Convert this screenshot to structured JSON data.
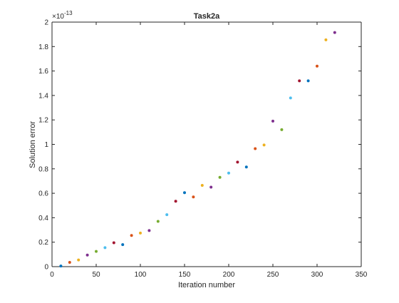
{
  "chart_data": {
    "type": "scatter",
    "title": "Task2a",
    "xlabel": "Iteration number",
    "ylabel": "Solution error",
    "y_exponent_label": "×10",
    "y_exponent": "-13",
    "xlim": [
      0,
      350
    ],
    "ylim": [
      0,
      2
    ],
    "xticks": [
      "0",
      "50",
      "100",
      "150",
      "200",
      "250",
      "300",
      "350"
    ],
    "yticks": [
      "0",
      "0.2",
      "0.4",
      "0.6",
      "0.8",
      "1",
      "1.2",
      "1.4",
      "1.6",
      "1.8",
      "2"
    ],
    "grid": false,
    "points": [
      {
        "x": 10,
        "y": 0.005,
        "color": "#0072BD"
      },
      {
        "x": 20,
        "y": 0.035,
        "color": "#D95319"
      },
      {
        "x": 30,
        "y": 0.055,
        "color": "#EDB120"
      },
      {
        "x": 40,
        "y": 0.095,
        "color": "#7E2F8E"
      },
      {
        "x": 50,
        "y": 0.125,
        "color": "#77AC30"
      },
      {
        "x": 60,
        "y": 0.155,
        "color": "#4DBEEE"
      },
      {
        "x": 70,
        "y": 0.195,
        "color": "#A2142F"
      },
      {
        "x": 80,
        "y": 0.18,
        "color": "#0072BD"
      },
      {
        "x": 90,
        "y": 0.255,
        "color": "#D95319"
      },
      {
        "x": 100,
        "y": 0.275,
        "color": "#EDB120"
      },
      {
        "x": 110,
        "y": 0.295,
        "color": "#7E2F8E"
      },
      {
        "x": 120,
        "y": 0.37,
        "color": "#77AC30"
      },
      {
        "x": 130,
        "y": 0.425,
        "color": "#4DBEEE"
      },
      {
        "x": 140,
        "y": 0.535,
        "color": "#A2142F"
      },
      {
        "x": 150,
        "y": 0.605,
        "color": "#0072BD"
      },
      {
        "x": 160,
        "y": 0.57,
        "color": "#D95319"
      },
      {
        "x": 170,
        "y": 0.665,
        "color": "#EDB120"
      },
      {
        "x": 180,
        "y": 0.65,
        "color": "#7E2F8E"
      },
      {
        "x": 190,
        "y": 0.73,
        "color": "#77AC30"
      },
      {
        "x": 200,
        "y": 0.765,
        "color": "#4DBEEE"
      },
      {
        "x": 210,
        "y": 0.855,
        "color": "#A2142F"
      },
      {
        "x": 220,
        "y": 0.815,
        "color": "#0072BD"
      },
      {
        "x": 230,
        "y": 0.965,
        "color": "#D95319"
      },
      {
        "x": 240,
        "y": 0.995,
        "color": "#EDB120"
      },
      {
        "x": 250,
        "y": 1.19,
        "color": "#7E2F8E"
      },
      {
        "x": 260,
        "y": 1.12,
        "color": "#77AC30"
      },
      {
        "x": 270,
        "y": 1.38,
        "color": "#4DBEEE"
      },
      {
        "x": 280,
        "y": 1.52,
        "color": "#A2142F"
      },
      {
        "x": 290,
        "y": 1.52,
        "color": "#0072BD"
      },
      {
        "x": 300,
        "y": 1.64,
        "color": "#D95319"
      },
      {
        "x": 310,
        "y": 1.855,
        "color": "#EDB120"
      },
      {
        "x": 320,
        "y": 1.915,
        "color": "#7E2F8E"
      }
    ]
  }
}
